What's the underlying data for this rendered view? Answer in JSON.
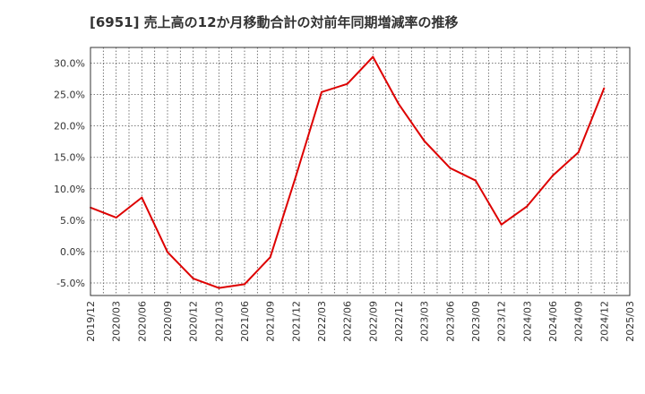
{
  "chart_data": {
    "type": "line",
    "title": "[6951]  売上高の12か月移動合計の対前年同期増減率の推移",
    "xlabel": "",
    "ylabel": "",
    "x": [
      "2019/12",
      "2020/03",
      "2020/06",
      "2020/09",
      "2020/12",
      "2021/03",
      "2021/06",
      "2021/09",
      "2021/12",
      "2022/03",
      "2022/06",
      "2022/09",
      "2022/12",
      "2023/03",
      "2023/06",
      "2023/09",
      "2023/12",
      "2024/03",
      "2024/06",
      "2024/09",
      "2024/12",
      "2025/03"
    ],
    "series": [
      {
        "color": "#dd0000",
        "values": [
          7.0,
          5.4,
          8.6,
          -0.1,
          -4.3,
          -5.8,
          -5.2,
          -0.9,
          12.0,
          25.4,
          26.7,
          31.0,
          23.5,
          17.6,
          13.3,
          11.3,
          4.3,
          7.2,
          12.1,
          15.8,
          26.0,
          null
        ]
      }
    ],
    "ylim": [
      -7.0,
      32.5
    ],
    "yticks": [
      -5,
      0,
      5,
      10,
      15,
      20,
      25,
      30
    ],
    "ytick_labels": [
      "-5.0%",
      "0.0%",
      "5.0%",
      "10.0%",
      "15.0%",
      "20.0%",
      "25.0%",
      "30.0%"
    ],
    "grid": true,
    "legend": "none"
  }
}
